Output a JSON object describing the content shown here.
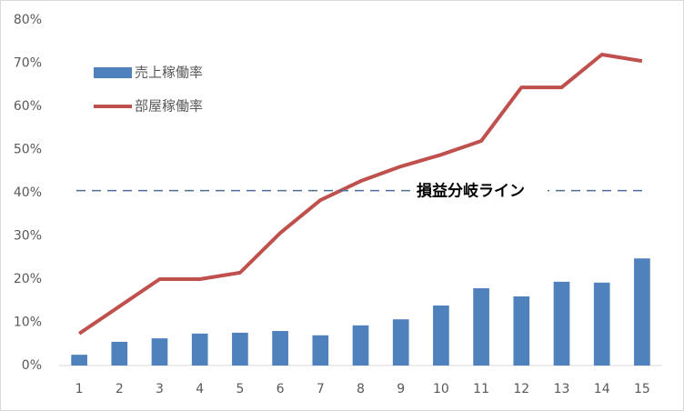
{
  "chart_data": {
    "type": "bar_line",
    "categories": [
      "1",
      "2",
      "3",
      "4",
      "5",
      "6",
      "7",
      "8",
      "9",
      "10",
      "11",
      "12",
      "13",
      "14",
      "15"
    ],
    "series": [
      {
        "name": "売上稼働率",
        "type": "bar",
        "color": "#4f81bd",
        "values": [
          2.5,
          5.5,
          6.3,
          7.4,
          7.6,
          8.0,
          7.0,
          9.3,
          10.7,
          13.9,
          17.9,
          16.0,
          19.4,
          19.2,
          24.8
        ]
      },
      {
        "name": "部屋稼働率",
        "type": "line",
        "color": "#c0504d",
        "values": [
          7.4,
          13.7,
          20.0,
          20.0,
          21.5,
          30.7,
          38.3,
          42.7,
          46.1,
          48.8,
          52.0,
          64.4,
          64.4,
          72.0,
          70.5
        ]
      }
    ],
    "reference_line": {
      "label": "損益分岐ライン",
      "value": 40.5,
      "color": "#4a6f96"
    },
    "ylim": [
      0,
      80
    ],
    "yticks": [
      {
        "value": 0,
        "label": "0%"
      },
      {
        "value": 10,
        "label": "10%"
      },
      {
        "value": 20,
        "label": "20%"
      },
      {
        "value": 30,
        "label": "30%"
      },
      {
        "value": 40,
        "label": "40%"
      },
      {
        "value": 50,
        "label": "50%"
      },
      {
        "value": 60,
        "label": "60%"
      },
      {
        "value": 70,
        "label": "70%"
      },
      {
        "value": 80,
        "label": "80%"
      }
    ],
    "grid": false,
    "legend": "upper-left"
  }
}
